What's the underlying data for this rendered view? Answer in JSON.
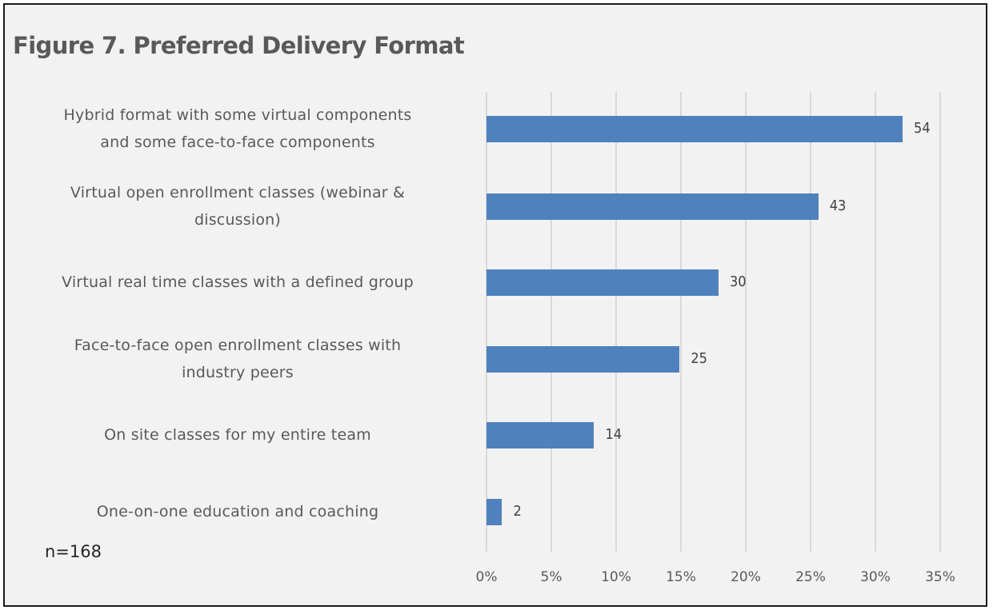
{
  "chart_data": {
    "type": "bar",
    "orientation": "horizontal",
    "title": "Figure 7. Preferred Delivery Format",
    "xlabel": "",
    "ylabel": "",
    "categories": [
      "Hybrid format with some virtual components and some face-to-face components",
      "Virtual open enrollment classes (webinar & discussion)",
      "Virtual real time classes with a defined group",
      "Face-to-face open enrollment classes with industry peers",
      "On site classes for my entire team",
      "One-on-one education and coaching"
    ],
    "category_lines": [
      [
        "Hybrid format with some virtual components",
        "and some face-to-face components"
      ],
      [
        "Virtual open enrollment classes (webinar &",
        "discussion)"
      ],
      [
        "Virtual real time classes with a defined group"
      ],
      [
        "Face-to-face open enrollment classes with",
        "industry peers"
      ],
      [
        "On site classes for my entire team"
      ],
      [
        "One-on-one education and coaching"
      ]
    ],
    "values": [
      54,
      43,
      30,
      25,
      14,
      2
    ],
    "percent_values": [
      32.1,
      25.6,
      17.9,
      14.9,
      8.3,
      1.2
    ],
    "data_labels": [
      "54",
      "43",
      "30",
      "25",
      "14",
      "2"
    ],
    "x_ticks": [
      "0%",
      "5%",
      "10%",
      "15%",
      "20%",
      "25%",
      "30%",
      "35%"
    ],
    "xlim": [
      0,
      35
    ],
    "grid": "vertical",
    "legend": "none",
    "annotation": "n=168",
    "bar_color": "#4f81bd"
  }
}
